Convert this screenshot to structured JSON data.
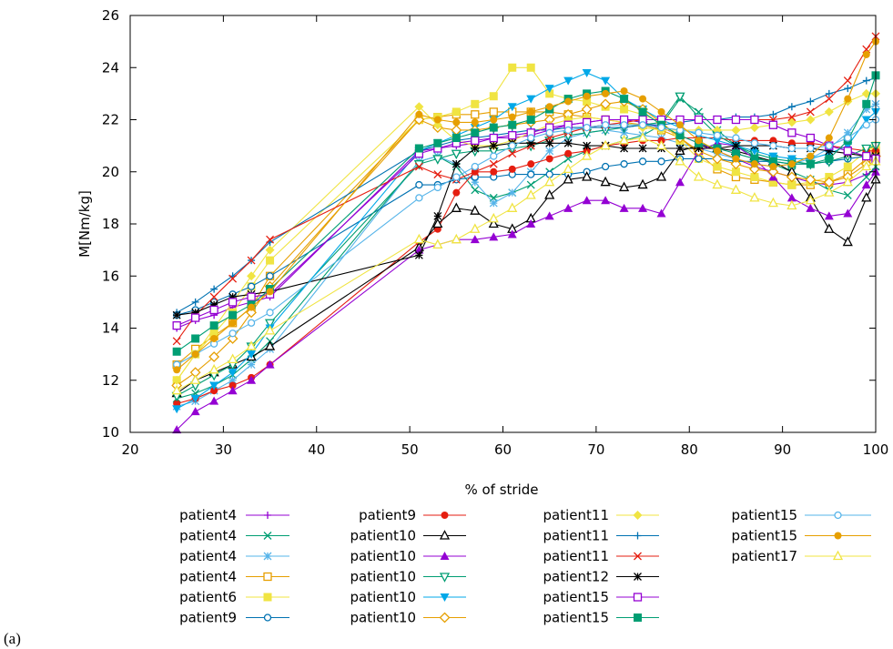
{
  "caption": "(a)",
  "chart_data": {
    "type": "line",
    "xlabel": "% of stride",
    "ylabel": "M[Nm/kg]",
    "xlim": [
      20,
      100
    ],
    "ylim": [
      10,
      26
    ],
    "xticks": [
      "20",
      "30",
      "40",
      "50",
      "60",
      "70",
      "80",
      "90",
      "100"
    ],
    "yticks": [
      "10",
      "12",
      "14",
      "16",
      "18",
      "20",
      "22",
      "24",
      "26"
    ],
    "grid": false,
    "legend_position": "bottom",
    "x": [
      25,
      27,
      29,
      31,
      33,
      35,
      51,
      53,
      55,
      57,
      59,
      61,
      63,
      65,
      67,
      69,
      71,
      73,
      75,
      77,
      79,
      81,
      83,
      85,
      87,
      89,
      91,
      93,
      95,
      97,
      99,
      100
    ],
    "series": [
      {
        "name": "patient4",
        "color": "#9400d3",
        "marker": "plus",
        "values": [
          14.0,
          14.3,
          14.5,
          14.8,
          15.0,
          15.2,
          20.8,
          20.9,
          21.0,
          21.1,
          21.3,
          21.3,
          21.4,
          21.6,
          21.8,
          21.9,
          22.0,
          22.0,
          21.9,
          21.7,
          21.4,
          21.1,
          20.8,
          20.5,
          20.2,
          20.0,
          19.8,
          19.6,
          19.5,
          19.6,
          19.9,
          20.1
        ]
      },
      {
        "name": "patient4",
        "color": "#009e73",
        "marker": "x",
        "values": [
          11.3,
          11.5,
          11.8,
          12.2,
          12.8,
          13.5,
          20.4,
          20.6,
          20.2,
          19.3,
          19.0,
          19.2,
          19.5,
          20.0,
          20.5,
          20.8,
          21.0,
          21.2,
          21.4,
          21.8,
          22.8,
          22.3,
          21.6,
          21.0,
          20.6,
          20.3,
          20.0,
          19.7,
          19.3,
          19.1,
          19.8,
          20.2
        ]
      },
      {
        "name": "patient4",
        "color": "#56b4e9",
        "marker": "star",
        "values": [
          11.0,
          11.2,
          11.6,
          12.0,
          12.6,
          13.2,
          20.4,
          20.6,
          20.3,
          19.6,
          18.8,
          19.2,
          20.0,
          20.8,
          21.3,
          21.5,
          21.6,
          21.5,
          21.4,
          21.3,
          21.1,
          20.9,
          20.7,
          20.5,
          20.3,
          20.2,
          20.3,
          20.5,
          20.9,
          21.5,
          22.4,
          22.6
        ]
      },
      {
        "name": "patient4",
        "color": "#e69f00",
        "marker": "square-open",
        "values": [
          12.6,
          13.2,
          13.7,
          14.2,
          14.8,
          16.0,
          22.0,
          22.1,
          22.2,
          22.2,
          22.3,
          22.3,
          22.3,
          22.3,
          22.2,
          22.1,
          22.0,
          21.9,
          21.8,
          21.6,
          21.3,
          20.7,
          20.1,
          19.8,
          19.7,
          19.6,
          19.5,
          19.5,
          19.6,
          19.9,
          20.5,
          20.8
        ]
      },
      {
        "name": "patient6",
        "color": "#f0e442",
        "marker": "square",
        "values": [
          12.0,
          13.0,
          13.8,
          14.6,
          15.6,
          16.6,
          22.0,
          22.1,
          22.3,
          22.6,
          22.9,
          24.0,
          24.0,
          23.0,
          22.8,
          22.7,
          22.5,
          22.4,
          22.2,
          21.9,
          21.2,
          20.5,
          20.2,
          20.0,
          19.8,
          19.6,
          19.5,
          19.6,
          19.8,
          20.2,
          20.8,
          21.0
        ]
      },
      {
        "name": "patient9",
        "color": "#0072b2",
        "marker": "circle-open",
        "values": [
          14.5,
          14.7,
          15.0,
          15.3,
          15.6,
          16.0,
          19.5,
          19.5,
          19.7,
          19.8,
          19.8,
          19.9,
          19.9,
          19.9,
          19.9,
          20.0,
          20.2,
          20.3,
          20.4,
          20.4,
          20.5,
          20.5,
          20.5,
          20.4,
          20.4,
          20.4,
          20.3,
          20.3,
          20.4,
          20.5,
          20.6,
          20.7
        ]
      },
      {
        "name": "patient9",
        "color": "#e51e10",
        "marker": "circle",
        "values": [
          11.1,
          11.3,
          11.6,
          11.8,
          12.1,
          12.6,
          17.3,
          17.8,
          19.2,
          20.0,
          20.0,
          20.1,
          20.3,
          20.5,
          20.7,
          20.8,
          21.0,
          21.1,
          21.2,
          21.2,
          21.3,
          21.3,
          21.3,
          21.2,
          21.2,
          21.2,
          21.1,
          21.1,
          21.0,
          20.9,
          20.8,
          20.8
        ]
      },
      {
        "name": "patient10",
        "color": "#000000",
        "marker": "triangle-open",
        "values": [
          11.5,
          12.0,
          12.3,
          12.6,
          12.9,
          13.3,
          17.1,
          18.0,
          18.6,
          18.5,
          18.0,
          17.8,
          18.2,
          19.1,
          19.7,
          19.8,
          19.6,
          19.4,
          19.5,
          19.8,
          20.8,
          21.0,
          20.9,
          20.8,
          20.6,
          20.4,
          20.0,
          19.0,
          17.8,
          17.3,
          19.0,
          19.7
        ]
      },
      {
        "name": "patient10",
        "color": "#9400d3",
        "marker": "triangle",
        "values": [
          10.1,
          10.8,
          11.2,
          11.6,
          12.0,
          12.6,
          17.0,
          17.2,
          17.4,
          17.4,
          17.5,
          17.6,
          18.0,
          18.3,
          18.6,
          18.9,
          18.9,
          18.6,
          18.6,
          18.4,
          19.6,
          20.8,
          21.1,
          21.0,
          20.5,
          19.8,
          19.0,
          18.6,
          18.3,
          18.4,
          19.5,
          20.0
        ]
      },
      {
        "name": "patient10",
        "color": "#009e73",
        "marker": "triangle-down-open",
        "values": [
          11.4,
          11.8,
          12.2,
          12.6,
          13.3,
          14.2,
          20.3,
          20.5,
          20.7,
          20.8,
          20.8,
          20.9,
          21.0,
          21.2,
          21.4,
          21.5,
          21.6,
          21.7,
          21.8,
          21.9,
          22.9,
          22.1,
          21.4,
          21.0,
          20.7,
          20.5,
          20.4,
          20.3,
          20.4,
          20.6,
          20.9,
          21.0
        ]
      },
      {
        "name": "patient10",
        "color": "#00a8e8",
        "marker": "triangle-down",
        "values": [
          10.9,
          11.3,
          11.8,
          12.3,
          13.0,
          14.0,
          20.8,
          21.1,
          21.4,
          21.7,
          22.0,
          22.5,
          22.8,
          23.2,
          23.5,
          23.8,
          23.5,
          22.8,
          22.4,
          22.0,
          21.7,
          21.4,
          21.2,
          21.0,
          20.8,
          20.6,
          20.5,
          20.5,
          20.7,
          21.0,
          22.0,
          22.3
        ]
      },
      {
        "name": "patient10",
        "color": "#e69f00",
        "marker": "diamond-open",
        "values": [
          11.8,
          12.3,
          12.9,
          13.6,
          14.6,
          15.6,
          22.0,
          21.7,
          21.6,
          21.6,
          21.7,
          21.8,
          21.9,
          22.0,
          22.2,
          22.4,
          22.6,
          22.7,
          22.4,
          21.9,
          21.3,
          20.8,
          20.5,
          20.3,
          20.1,
          20.0,
          19.8,
          19.7,
          19.6,
          19.8,
          20.3,
          20.6
        ]
      },
      {
        "name": "patient11",
        "color": "#f0e442",
        "marker": "diamond",
        "values": [
          12.0,
          13.0,
          14.0,
          15.0,
          16.0,
          17.0,
          22.5,
          21.8,
          21.2,
          21.0,
          21.0,
          21.2,
          21.5,
          21.8,
          22.0,
          22.1,
          22.0,
          21.9,
          21.7,
          21.6,
          21.6,
          21.6,
          21.6,
          21.6,
          21.7,
          21.8,
          21.9,
          22.0,
          22.3,
          22.7,
          23.0,
          23.0
        ]
      },
      {
        "name": "patient11",
        "color": "#0072b2",
        "marker": "plus",
        "values": [
          14.6,
          15.0,
          15.5,
          16.0,
          16.6,
          17.3,
          20.8,
          21.0,
          21.2,
          21.3,
          21.4,
          21.5,
          21.6,
          21.6,
          21.7,
          21.7,
          21.7,
          21.7,
          21.8,
          21.8,
          21.9,
          22.0,
          22.0,
          22.1,
          22.1,
          22.2,
          22.5,
          22.7,
          23.0,
          23.2,
          23.5,
          23.6
        ]
      },
      {
        "name": "patient11",
        "color": "#e51e10",
        "marker": "x",
        "values": [
          13.5,
          14.5,
          15.2,
          15.9,
          16.6,
          17.4,
          20.2,
          19.9,
          19.7,
          20.0,
          20.3,
          20.7,
          21.0,
          21.3,
          21.5,
          21.7,
          21.8,
          21.9,
          22.0,
          22.0,
          22.0,
          22.0,
          22.0,
          22.0,
          22.0,
          22.0,
          22.1,
          22.3,
          22.8,
          23.5,
          24.7,
          25.2
        ]
      },
      {
        "name": "patient12",
        "color": "#000000",
        "marker": "star",
        "values": [
          14.5,
          14.6,
          14.9,
          15.2,
          15.3,
          15.4,
          16.8,
          18.3,
          20.3,
          20.9,
          21.0,
          21.1,
          21.1,
          21.1,
          21.1,
          21.0,
          21.0,
          20.9,
          20.9,
          20.9,
          20.9,
          20.9,
          20.9,
          21.0,
          21.0,
          21.0,
          20.9,
          20.9,
          20.8,
          20.7,
          20.6,
          20.6
        ]
      },
      {
        "name": "patient15",
        "color": "#9400d3",
        "marker": "square-open",
        "values": [
          14.1,
          14.4,
          14.7,
          15.0,
          15.2,
          15.3,
          20.7,
          20.9,
          21.1,
          21.2,
          21.3,
          21.4,
          21.5,
          21.7,
          21.8,
          21.9,
          22.0,
          22.0,
          22.0,
          22.0,
          22.0,
          22.0,
          22.0,
          22.0,
          22.0,
          21.8,
          21.5,
          21.3,
          21.0,
          20.8,
          20.6,
          20.5
        ]
      },
      {
        "name": "patient15",
        "color": "#009e73",
        "marker": "square",
        "values": [
          13.1,
          13.6,
          14.1,
          14.5,
          14.9,
          15.5,
          20.9,
          21.1,
          21.3,
          21.5,
          21.7,
          21.8,
          22.0,
          22.4,
          22.8,
          23.0,
          23.1,
          22.8,
          22.3,
          21.8,
          21.4,
          21.1,
          20.9,
          20.7,
          20.5,
          20.4,
          20.3,
          20.3,
          20.5,
          21.2,
          22.6,
          23.7
        ]
      },
      {
        "name": "patient15",
        "color": "#56b4e9",
        "marker": "circle-open",
        "values": [
          12.6,
          13.0,
          13.4,
          13.8,
          14.2,
          14.6,
          19.0,
          19.4,
          19.8,
          20.2,
          20.6,
          21.0,
          21.3,
          21.5,
          21.6,
          21.7,
          21.8,
          21.8,
          21.8,
          21.7,
          21.6,
          21.5,
          21.4,
          21.3,
          21.1,
          21.0,
          20.9,
          20.9,
          21.0,
          21.3,
          21.8,
          22.0
        ]
      },
      {
        "name": "patient15",
        "color": "#e69f00",
        "marker": "circle",
        "values": [
          12.4,
          13.0,
          13.6,
          14.2,
          14.8,
          15.4,
          22.2,
          22.0,
          21.9,
          21.9,
          22.0,
          22.1,
          22.3,
          22.5,
          22.7,
          22.9,
          23.0,
          23.1,
          22.8,
          22.3,
          21.8,
          21.2,
          20.8,
          20.5,
          20.3,
          20.2,
          20.3,
          20.6,
          21.3,
          22.8,
          24.5,
          25.0
        ]
      },
      {
        "name": "patient17",
        "color": "#f0e442",
        "marker": "triangle-open",
        "values": [
          11.6,
          12.0,
          12.4,
          12.8,
          13.3,
          13.9,
          17.4,
          17.2,
          17.4,
          17.8,
          18.2,
          18.6,
          19.1,
          19.6,
          20.1,
          20.6,
          21.0,
          21.2,
          21.3,
          21.0,
          20.4,
          19.8,
          19.5,
          19.3,
          19.0,
          18.8,
          18.7,
          18.9,
          19.2,
          19.6,
          20.2,
          20.4
        ]
      }
    ]
  }
}
